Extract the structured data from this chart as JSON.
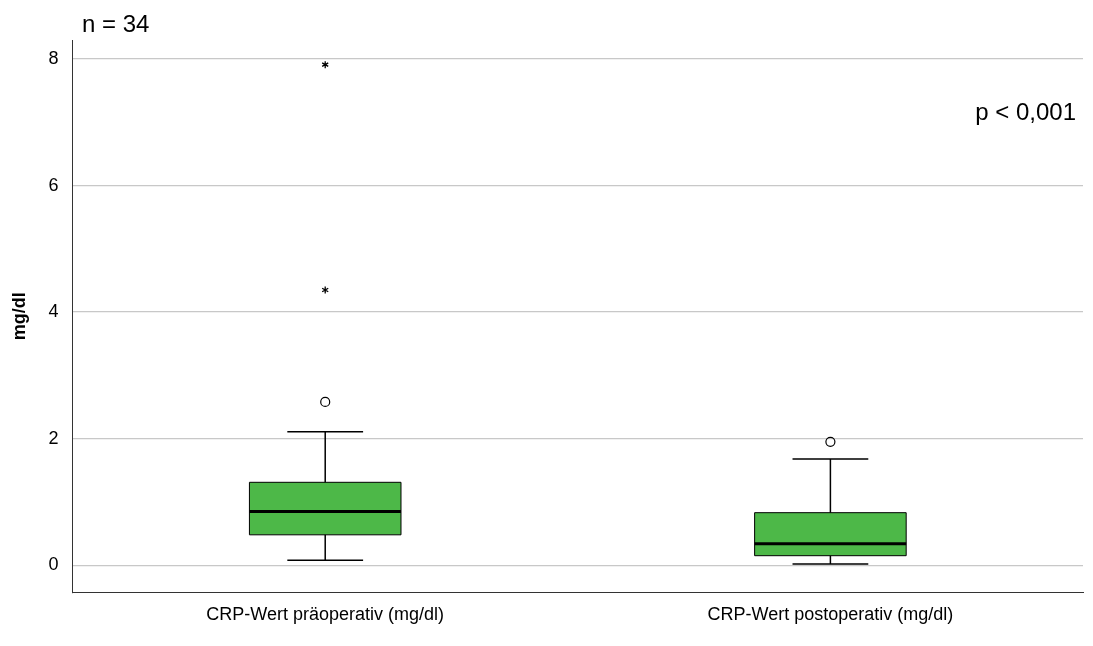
{
  "chart_data": {
    "type": "box",
    "ylabel": "mg/dl",
    "categories": [
      "CRP-Wert präoperativ (mg/dl)",
      "CRP-Wert postoperativ (mg/dl)"
    ],
    "color": "#4db848",
    "boxes": [
      {
        "low": 0.08,
        "q1": 0.48,
        "median": 0.85,
        "q3": 1.31,
        "high": 2.11,
        "outliers": [
          2.58,
          4.35,
          7.91
        ]
      },
      {
        "low": 0.02,
        "q1": 0.15,
        "median": 0.34,
        "q3": 0.83,
        "high": 1.68,
        "outliers": [
          1.95
        ]
      }
    ],
    "ylim": [
      -0.43,
      8.3
    ],
    "yticks": [
      0,
      2,
      4,
      6,
      8
    ],
    "grid": "y",
    "legend": false,
    "annotations": [
      "n = 34",
      "p < 0,001"
    ]
  }
}
